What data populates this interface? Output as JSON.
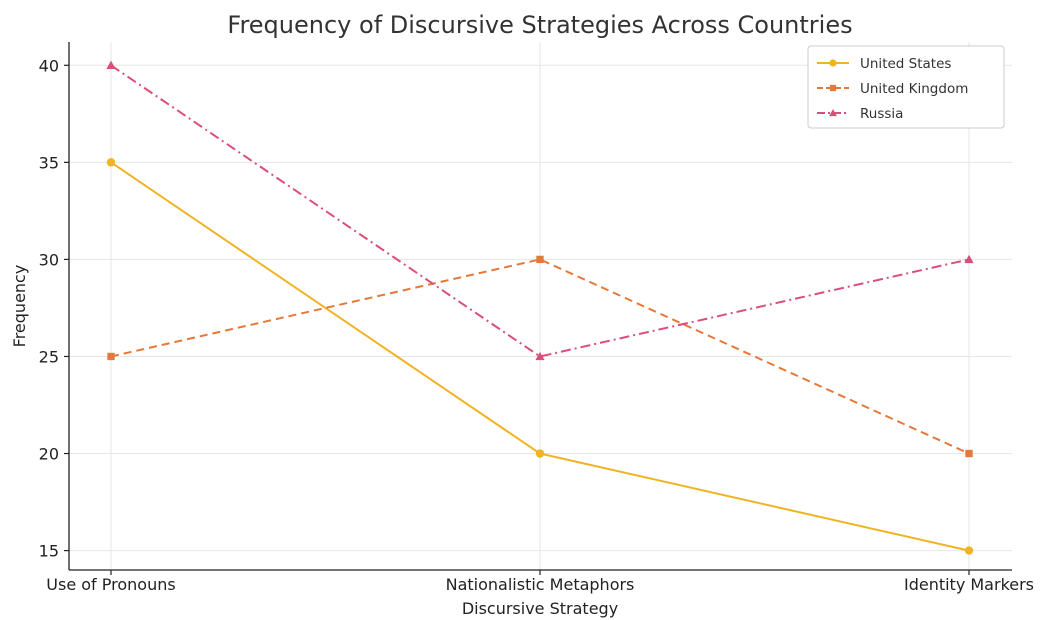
{
  "chart_data": {
    "type": "line",
    "title": "Frequency of Discursive Strategies Across Countries",
    "xlabel": "Discursive Strategy",
    "ylabel": "Frequency",
    "categories": [
      "Use of Pronouns",
      "Nationalistic Metaphors",
      "Identity Markers"
    ],
    "yticks": [
      15,
      20,
      25,
      30,
      35,
      40
    ],
    "ylim": [
      14,
      41.2
    ],
    "grid": true,
    "legend_position": "top-right",
    "series": [
      {
        "name": "United States",
        "values": [
          35,
          20,
          15
        ],
        "color": "#f0b323",
        "marker": "circle",
        "linestyle": "solid"
      },
      {
        "name": "United Kingdom",
        "values": [
          25,
          30,
          20
        ],
        "color": "#e5793a",
        "marker": "square",
        "linestyle": "dashed"
      },
      {
        "name": "Russia",
        "values": [
          40,
          25,
          30
        ],
        "color": "#d94f79",
        "marker": "triangle",
        "linestyle": "dashdot"
      }
    ]
  }
}
